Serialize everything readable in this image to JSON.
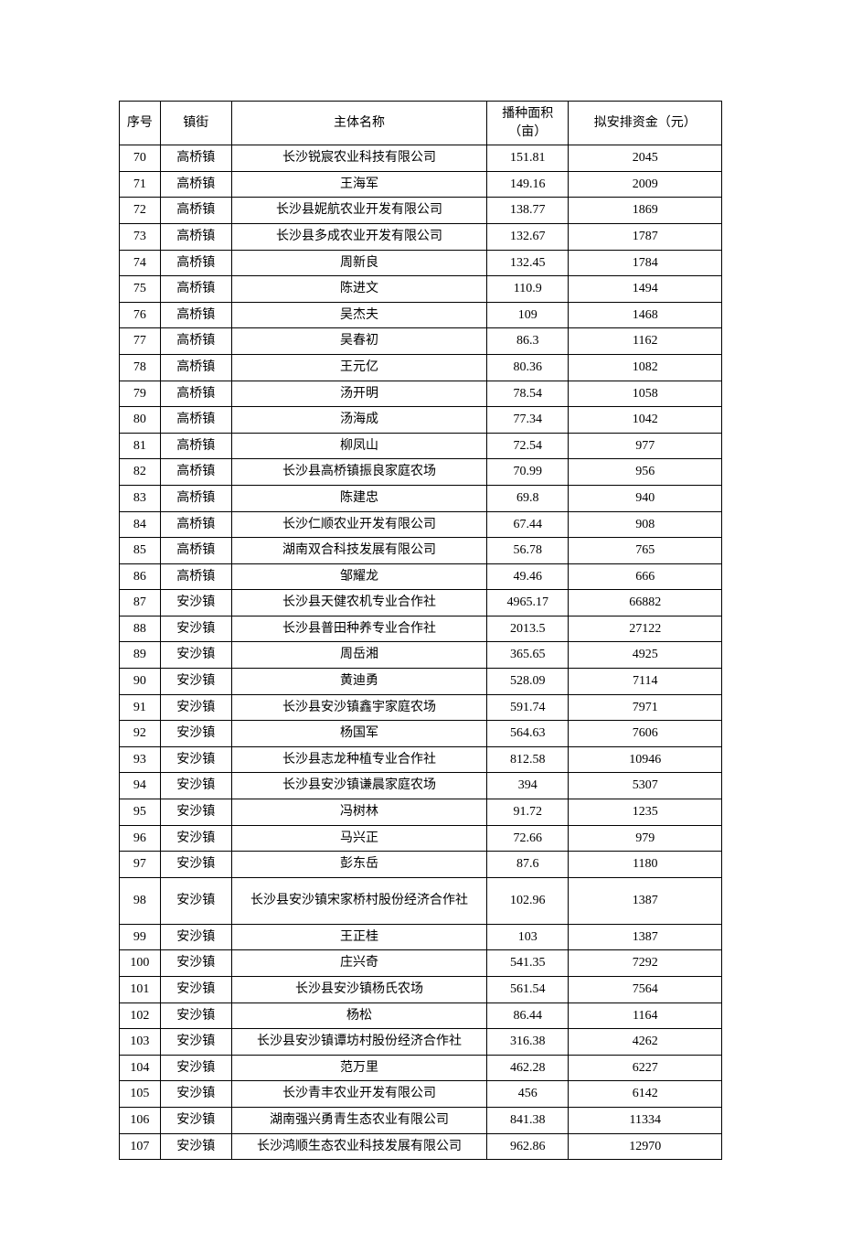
{
  "headers": {
    "seq": "序号",
    "town": "镇街",
    "name": "主体名称",
    "area": "播种面积（亩）",
    "fund": "拟安排资金（元）"
  },
  "rows": [
    {
      "seq": "70",
      "town": "高桥镇",
      "name": "长沙锐宸农业科技有限公司",
      "area": "151.81",
      "fund": "2045"
    },
    {
      "seq": "71",
      "town": "高桥镇",
      "name": "王海军",
      "area": "149.16",
      "fund": "2009"
    },
    {
      "seq": "72",
      "town": "高桥镇",
      "name": "长沙县妮航农业开发有限公司",
      "area": "138.77",
      "fund": "1869"
    },
    {
      "seq": "73",
      "town": "高桥镇",
      "name": "长沙县多成农业开发有限公司",
      "area": "132.67",
      "fund": "1787"
    },
    {
      "seq": "74",
      "town": "高桥镇",
      "name": "周新良",
      "area": "132.45",
      "fund": "1784"
    },
    {
      "seq": "75",
      "town": "高桥镇",
      "name": "陈进文",
      "area": "110.9",
      "fund": "1494"
    },
    {
      "seq": "76",
      "town": "高桥镇",
      "name": "吴杰夫",
      "area": "109",
      "fund": "1468"
    },
    {
      "seq": "77",
      "town": "高桥镇",
      "name": "吴春初",
      "area": "86.3",
      "fund": "1162"
    },
    {
      "seq": "78",
      "town": "高桥镇",
      "name": "王元亿",
      "area": "80.36",
      "fund": "1082"
    },
    {
      "seq": "79",
      "town": "高桥镇",
      "name": "汤开明",
      "area": "78.54",
      "fund": "1058"
    },
    {
      "seq": "80",
      "town": "高桥镇",
      "name": "汤海成",
      "area": "77.34",
      "fund": "1042"
    },
    {
      "seq": "81",
      "town": "高桥镇",
      "name": "柳凤山",
      "area": "72.54",
      "fund": "977"
    },
    {
      "seq": "82",
      "town": "高桥镇",
      "name": "长沙县高桥镇振良家庭农场",
      "area": "70.99",
      "fund": "956"
    },
    {
      "seq": "83",
      "town": "高桥镇",
      "name": "陈建忠",
      "area": "69.8",
      "fund": "940"
    },
    {
      "seq": "84",
      "town": "高桥镇",
      "name": "长沙仁顺农业开发有限公司",
      "area": "67.44",
      "fund": "908"
    },
    {
      "seq": "85",
      "town": "高桥镇",
      "name": "湖南双合科技发展有限公司",
      "area": "56.78",
      "fund": "765"
    },
    {
      "seq": "86",
      "town": "高桥镇",
      "name": "邹耀龙",
      "area": "49.46",
      "fund": "666"
    },
    {
      "seq": "87",
      "town": "安沙镇",
      "name": "长沙县天健农机专业合作社",
      "area": "4965.17",
      "fund": "66882"
    },
    {
      "seq": "88",
      "town": "安沙镇",
      "name": "长沙县普田种养专业合作社",
      "area": "2013.5",
      "fund": "27122"
    },
    {
      "seq": "89",
      "town": "安沙镇",
      "name": "周岳湘",
      "area": "365.65",
      "fund": "4925"
    },
    {
      "seq": "90",
      "town": "安沙镇",
      "name": "黄迪勇",
      "area": "528.09",
      "fund": "7114"
    },
    {
      "seq": "91",
      "town": "安沙镇",
      "name": "长沙县安沙镇鑫宇家庭农场",
      "area": "591.74",
      "fund": "7971"
    },
    {
      "seq": "92",
      "town": "安沙镇",
      "name": "杨国军",
      "area": "564.63",
      "fund": "7606"
    },
    {
      "seq": "93",
      "town": "安沙镇",
      "name": "长沙县志龙种植专业合作社",
      "area": "812.58",
      "fund": "10946"
    },
    {
      "seq": "94",
      "town": "安沙镇",
      "name": "长沙县安沙镇谦晨家庭农场",
      "area": "394",
      "fund": "5307"
    },
    {
      "seq": "95",
      "town": "安沙镇",
      "name": "冯树林",
      "area": "91.72",
      "fund": "1235"
    },
    {
      "seq": "96",
      "town": "安沙镇",
      "name": "马兴正",
      "area": "72.66",
      "fund": "979"
    },
    {
      "seq": "97",
      "town": "安沙镇",
      "name": "彭东岳",
      "area": "87.6",
      "fund": "1180"
    },
    {
      "seq": "98",
      "town": "安沙镇",
      "name": "长沙县安沙镇宋家桥村股份经济合作社",
      "area": "102.96",
      "fund": "1387",
      "tall": true
    },
    {
      "seq": "99",
      "town": "安沙镇",
      "name": "王正桂",
      "area": "103",
      "fund": "1387"
    },
    {
      "seq": "100",
      "town": "安沙镇",
      "name": "庄兴奇",
      "area": "541.35",
      "fund": "7292"
    },
    {
      "seq": "101",
      "town": "安沙镇",
      "name": "长沙县安沙镇杨氏农场",
      "area": "561.54",
      "fund": "7564"
    },
    {
      "seq": "102",
      "town": "安沙镇",
      "name": "杨松",
      "area": "86.44",
      "fund": "1164"
    },
    {
      "seq": "103",
      "town": "安沙镇",
      "name": "长沙县安沙镇谭坊村股份经济合作社",
      "area": "316.38",
      "fund": "4262"
    },
    {
      "seq": "104",
      "town": "安沙镇",
      "name": "范万里",
      "area": "462.28",
      "fund": "6227"
    },
    {
      "seq": "105",
      "town": "安沙镇",
      "name": "长沙青丰农业开发有限公司",
      "area": "456",
      "fund": "6142"
    },
    {
      "seq": "106",
      "town": "安沙镇",
      "name": "湖南强兴勇青生态农业有限公司",
      "area": "841.38",
      "fund": "11334"
    },
    {
      "seq": "107",
      "town": "安沙镇",
      "name": "长沙鸿顺生态农业科技发展有限公司",
      "area": "962.86",
      "fund": "12970"
    }
  ]
}
